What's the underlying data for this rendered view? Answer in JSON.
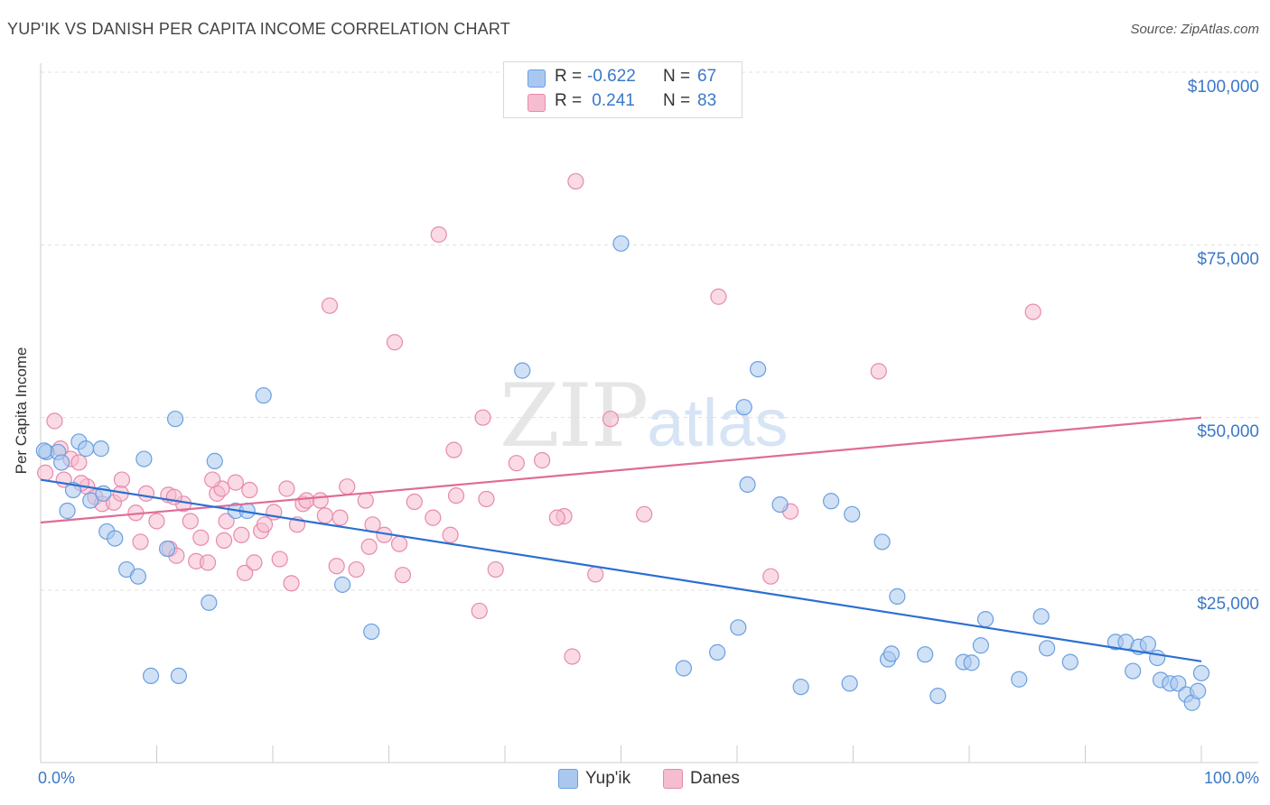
{
  "title": "YUP'IK VS DANISH PER CAPITA INCOME CORRELATION CHART",
  "source": "Source: ZipAtlas.com",
  "watermark": {
    "zip": "ZIP",
    "atlas": "atlas"
  },
  "legend": {
    "rows": [
      {
        "r_label": "R = ",
        "r_value": "-0.622",
        "n_label": "N = ",
        "n_value": "67",
        "color": "#aac8ef"
      },
      {
        "r_label": "R = ",
        "r_value": " 0.241",
        "n_label": "N = ",
        "n_value": "83",
        "color": "#f6bccf"
      }
    ],
    "bottom": [
      {
        "label": "Yup'ik",
        "color": "#aac8ef"
      },
      {
        "label": "Danes",
        "color": "#f6bccf"
      }
    ]
  },
  "colors": {
    "blue_fill": "#aac8ef",
    "blue_stroke": "#6a9fe0",
    "blue_line": "#2b6fd1",
    "pink_fill": "#f6bccf",
    "pink_stroke": "#e88aaa",
    "pink_line": "#e06b98",
    "tick_text": "#3a78c8"
  },
  "chart_data": {
    "type": "scatter",
    "title": "YUP'IK VS DANISH PER CAPITA INCOME CORRELATION CHART",
    "xlabel": "",
    "ylabel": "Per Capita Income",
    "xlim": [
      0,
      100
    ],
    "ylim": [
      0,
      105000
    ],
    "x_tick_labels": [
      "0.0%",
      "100.0%"
    ],
    "y_ticks": [
      25000,
      50000,
      75000,
      100000
    ],
    "y_tick_labels": [
      "$25,000",
      "$50,000",
      "$75,000",
      "$100,000"
    ],
    "grid": true,
    "series": [
      {
        "name": "Yup'ik",
        "r": -0.622,
        "n": 67,
        "trend": {
          "x0": 0,
          "y0": 41000,
          "x1": 100,
          "y1": 14700
        },
        "points": [
          [
            0.5,
            45000
          ],
          [
            1.5,
            45000
          ],
          [
            1.8,
            43500
          ],
          [
            2.3,
            36500
          ],
          [
            2.8,
            39500
          ],
          [
            3.3,
            46500
          ],
          [
            3.9,
            45500
          ],
          [
            4.3,
            38000
          ],
          [
            5.2,
            45500
          ],
          [
            5.4,
            39000
          ],
          [
            5.7,
            33500
          ],
          [
            6.4,
            32500
          ],
          [
            7.4,
            28000
          ],
          [
            8.4,
            27000
          ],
          [
            8.9,
            44000
          ],
          [
            9.5,
            12600
          ],
          [
            10.9,
            31000
          ],
          [
            11.6,
            49800
          ],
          [
            11.9,
            12600
          ],
          [
            14.5,
            23200
          ],
          [
            15.0,
            43700
          ],
          [
            16.8,
            36500
          ],
          [
            17.8,
            36500
          ],
          [
            19.2,
            53200
          ],
          [
            26.0,
            25800
          ],
          [
            28.5,
            19000
          ],
          [
            41.5,
            56800
          ],
          [
            50.0,
            75200
          ],
          [
            55.4,
            13700
          ],
          [
            58.3,
            16000
          ],
          [
            60.1,
            19600
          ],
          [
            60.6,
            51500
          ],
          [
            60.9,
            40300
          ],
          [
            61.8,
            57000
          ],
          [
            63.7,
            37400
          ],
          [
            65.5,
            11000
          ],
          [
            68.1,
            37900
          ],
          [
            69.7,
            11500
          ],
          [
            69.9,
            36000
          ],
          [
            72.5,
            32000
          ],
          [
            73.0,
            15000
          ],
          [
            73.3,
            15800
          ],
          [
            73.8,
            24100
          ],
          [
            76.2,
            15700
          ],
          [
            77.3,
            9700
          ],
          [
            79.5,
            14600
          ],
          [
            80.2,
            14500
          ],
          [
            81.0,
            17000
          ],
          [
            81.4,
            20800
          ],
          [
            84.3,
            12100
          ],
          [
            86.2,
            21200
          ],
          [
            86.7,
            16600
          ],
          [
            88.7,
            14600
          ],
          [
            92.6,
            17500
          ],
          [
            93.5,
            17500
          ],
          [
            94.1,
            13300
          ],
          [
            94.6,
            16800
          ],
          [
            95.4,
            17200
          ],
          [
            96.2,
            15200
          ],
          [
            96.5,
            12000
          ],
          [
            97.3,
            11500
          ],
          [
            98.0,
            11500
          ],
          [
            98.7,
            9900
          ],
          [
            99.2,
            8700
          ],
          [
            99.7,
            10400
          ],
          [
            100.0,
            13000
          ],
          [
            0.3,
            45200
          ]
        ]
      },
      {
        "name": "Danes",
        "r": 0.241,
        "n": 83,
        "trend": {
          "x0": 0,
          "y0": 34800,
          "x1": 100,
          "y1": 50000
        },
        "points": [
          [
            0.4,
            42000
          ],
          [
            1.2,
            49500
          ],
          [
            1.7,
            45500
          ],
          [
            2.6,
            44000
          ],
          [
            3.3,
            43500
          ],
          [
            4.0,
            40000
          ],
          [
            4.7,
            38500
          ],
          [
            5.3,
            37500
          ],
          [
            6.3,
            37700
          ],
          [
            6.9,
            39000
          ],
          [
            7.0,
            41000
          ],
          [
            8.2,
            36200
          ],
          [
            8.6,
            32000
          ],
          [
            9.1,
            39000
          ],
          [
            10.0,
            35000
          ],
          [
            11.0,
            38800
          ],
          [
            11.1,
            31000
          ],
          [
            11.7,
            30000
          ],
          [
            12.3,
            37500
          ],
          [
            12.9,
            35000
          ],
          [
            13.4,
            29200
          ],
          [
            13.8,
            32600
          ],
          [
            14.4,
            29000
          ],
          [
            15.2,
            39000
          ],
          [
            15.6,
            39700
          ],
          [
            15.8,
            32200
          ],
          [
            16.8,
            40600
          ],
          [
            17.3,
            33000
          ],
          [
            17.6,
            27500
          ],
          [
            18.0,
            39500
          ],
          [
            18.4,
            29000
          ],
          [
            19.0,
            33600
          ],
          [
            19.3,
            34500
          ],
          [
            20.1,
            36300
          ],
          [
            20.6,
            29500
          ],
          [
            21.2,
            39700
          ],
          [
            21.6,
            26000
          ],
          [
            22.1,
            34500
          ],
          [
            22.6,
            37500
          ],
          [
            22.9,
            38000
          ],
          [
            24.1,
            38000
          ],
          [
            24.9,
            66200
          ],
          [
            25.5,
            28500
          ],
          [
            25.8,
            35500
          ],
          [
            26.4,
            40000
          ],
          [
            27.2,
            28000
          ],
          [
            28.0,
            38000
          ],
          [
            28.3,
            31300
          ],
          [
            28.6,
            34500
          ],
          [
            29.6,
            33000
          ],
          [
            30.5,
            60900
          ],
          [
            30.9,
            31700
          ],
          [
            31.2,
            27200
          ],
          [
            32.2,
            37800
          ],
          [
            33.8,
            35500
          ],
          [
            34.3,
            76500
          ],
          [
            35.3,
            33000
          ],
          [
            35.6,
            45300
          ],
          [
            35.8,
            38700
          ],
          [
            37.8,
            22000
          ],
          [
            38.1,
            50000
          ],
          [
            38.4,
            38200
          ],
          [
            39.2,
            28000
          ],
          [
            41.0,
            43400
          ],
          [
            43.2,
            43800
          ],
          [
            45.1,
            35700
          ],
          [
            45.8,
            15400
          ],
          [
            46.1,
            84200
          ],
          [
            47.8,
            27300
          ],
          [
            49.1,
            49800
          ],
          [
            52.0,
            36000
          ],
          [
            58.4,
            67500
          ],
          [
            62.9,
            27000
          ],
          [
            64.6,
            36400
          ],
          [
            72.2,
            56700
          ],
          [
            85.5,
            65300
          ],
          [
            2.0,
            41000
          ],
          [
            3.5,
            40500
          ],
          [
            24.5,
            35800
          ],
          [
            16.0,
            35000
          ],
          [
            11.5,
            38500
          ],
          [
            44.5,
            35500
          ],
          [
            14.8,
            41000
          ]
        ]
      }
    ]
  }
}
